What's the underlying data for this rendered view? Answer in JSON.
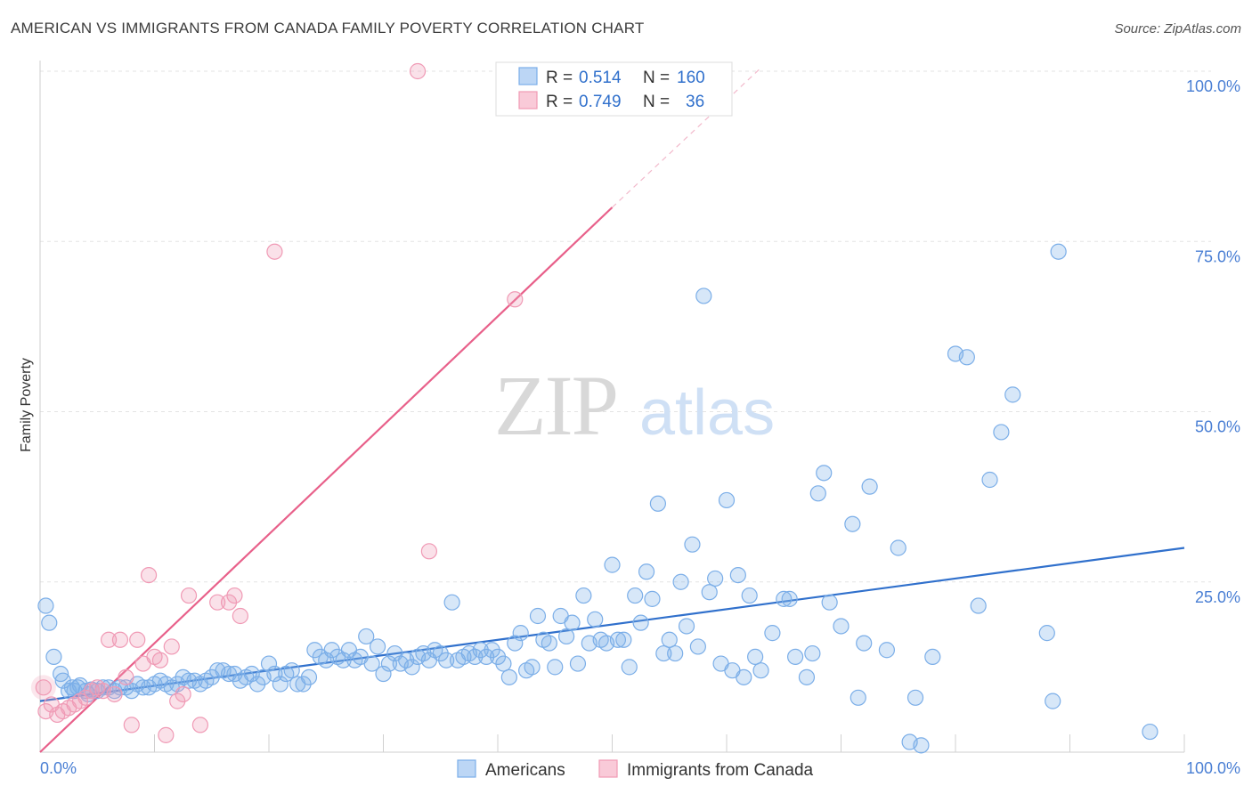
{
  "header": {
    "title": "AMERICAN VS IMMIGRANTS FROM CANADA FAMILY POVERTY CORRELATION CHART",
    "source": "Source: ZipAtlas.com"
  },
  "watermark": {
    "zip": "ZIP",
    "atlas": "atlas"
  },
  "legend": {
    "r_label": "R =",
    "n_label": "N =",
    "rows": [
      {
        "r": "0.514",
        "n": "160",
        "color": "#7baee8"
      },
      {
        "r": "0.749",
        "n": "36",
        "color": "#f09ab5"
      }
    ]
  },
  "bottom_legend": {
    "items": [
      {
        "label": "Americans",
        "color": "#7baee8"
      },
      {
        "label": "Immigrants from Canada",
        "color": "#f09ab5"
      }
    ]
  },
  "chart_data": {
    "type": "scatter",
    "ylabel": "Family Poverty",
    "xlim": [
      0,
      100
    ],
    "ylim": [
      0,
      100
    ],
    "x_ticks": [
      "0.0%",
      "100.0%"
    ],
    "y_ticks": [
      {
        "value": 25,
        "label": "25.0%"
      },
      {
        "value": 50,
        "label": "50.0%"
      },
      {
        "value": 75,
        "label": "75.0%"
      },
      {
        "value": 100,
        "label": "100.0%"
      }
    ],
    "grid": true,
    "series": [
      {
        "name": "Americans",
        "color": "#7baee8",
        "line_color": "#3070cc",
        "trend": {
          "x0": 0,
          "y0": 7.5,
          "x1": 100,
          "y1": 30
        },
        "points": [
          [
            0.5,
            21.5
          ],
          [
            0.8,
            19
          ],
          [
            1.2,
            14
          ],
          [
            1.8,
            11.5
          ],
          [
            2,
            10.5
          ],
          [
            2.5,
            9
          ],
          [
            2.8,
            9.5
          ],
          [
            3,
            9
          ],
          [
            3.3,
            9.5
          ],
          [
            3.5,
            9.8
          ],
          [
            4,
            9
          ],
          [
            4.2,
            8.5
          ],
          [
            4.5,
            9.2
          ],
          [
            5,
            9
          ],
          [
            5.5,
            9.5
          ],
          [
            6,
            9.5
          ],
          [
            6.5,
            9
          ],
          [
            7,
            9.5
          ],
          [
            7.5,
            9.5
          ],
          [
            8,
            9
          ],
          [
            8.5,
            10
          ],
          [
            9,
            9.5
          ],
          [
            9.5,
            9.5
          ],
          [
            10,
            10
          ],
          [
            10.5,
            10.5
          ],
          [
            11,
            10
          ],
          [
            11.5,
            9.5
          ],
          [
            12,
            10
          ],
          [
            12.5,
            11
          ],
          [
            13,
            10.5
          ],
          [
            13.5,
            10.5
          ],
          [
            14,
            10
          ],
          [
            14.5,
            10.5
          ],
          [
            15,
            11
          ],
          [
            15.5,
            12
          ],
          [
            16,
            12
          ],
          [
            16.5,
            11.5
          ],
          [
            17,
            11.5
          ],
          [
            17.5,
            10.5
          ],
          [
            18,
            11
          ],
          [
            18.5,
            11.5
          ],
          [
            19,
            10
          ],
          [
            19.5,
            11
          ],
          [
            20,
            13
          ],
          [
            20.5,
            11.5
          ],
          [
            21,
            10
          ],
          [
            21.5,
            11.5
          ],
          [
            22,
            12
          ],
          [
            22.5,
            10
          ],
          [
            23,
            10
          ],
          [
            23.5,
            11
          ],
          [
            24,
            15
          ],
          [
            24.5,
            14
          ],
          [
            25,
            13.5
          ],
          [
            25.5,
            15
          ],
          [
            26,
            14
          ],
          [
            26.5,
            13.5
          ],
          [
            27,
            15
          ],
          [
            27.5,
            13.5
          ],
          [
            28,
            14
          ],
          [
            28.5,
            17
          ],
          [
            29,
            13
          ],
          [
            29.5,
            15.5
          ],
          [
            30,
            11.5
          ],
          [
            30.5,
            13
          ],
          [
            31,
            14.5
          ],
          [
            31.5,
            13
          ],
          [
            32,
            13.5
          ],
          [
            32.5,
            12.5
          ],
          [
            33,
            14
          ],
          [
            33.5,
            14.5
          ],
          [
            34,
            13.5
          ],
          [
            34.5,
            15
          ],
          [
            35,
            14.5
          ],
          [
            35.5,
            13.5
          ],
          [
            36,
            22
          ],
          [
            36.5,
            13.5
          ],
          [
            37,
            14
          ],
          [
            37.5,
            14.5
          ],
          [
            38,
            14
          ],
          [
            38.5,
            15
          ],
          [
            39,
            14
          ],
          [
            39.5,
            15
          ],
          [
            40,
            14
          ],
          [
            40.5,
            13
          ],
          [
            41,
            11
          ],
          [
            41.5,
            16
          ],
          [
            42,
            17.5
          ],
          [
            42.5,
            12
          ],
          [
            43,
            12.5
          ],
          [
            43.5,
            20
          ],
          [
            44,
            16.5
          ],
          [
            44.5,
            16
          ],
          [
            45,
            12.5
          ],
          [
            45.5,
            20
          ],
          [
            46,
            17
          ],
          [
            46.5,
            19
          ],
          [
            47,
            13
          ],
          [
            47.5,
            23
          ],
          [
            48,
            16
          ],
          [
            48.5,
            19.5
          ],
          [
            49,
            16.5
          ],
          [
            49.5,
            16
          ],
          [
            50,
            27.5
          ],
          [
            50.5,
            16.5
          ],
          [
            51,
            16.5
          ],
          [
            51.5,
            12.5
          ],
          [
            52,
            23
          ],
          [
            52.5,
            19
          ],
          [
            53,
            26.5
          ],
          [
            53.5,
            22.5
          ],
          [
            54,
            36.5
          ],
          [
            54.5,
            14.5
          ],
          [
            55,
            16.5
          ],
          [
            55.5,
            14.5
          ],
          [
            56,
            25
          ],
          [
            56.5,
            18.5
          ],
          [
            57,
            30.5
          ],
          [
            57.5,
            15.5
          ],
          [
            58,
            67
          ],
          [
            58.5,
            23.5
          ],
          [
            59,
            25.5
          ],
          [
            59.5,
            13
          ],
          [
            60,
            37
          ],
          [
            60.5,
            12
          ],
          [
            61,
            26
          ],
          [
            61.5,
            11
          ],
          [
            62,
            23
          ],
          [
            62.5,
            14
          ],
          [
            63,
            12
          ],
          [
            64,
            17.5
          ],
          [
            65,
            22.5
          ],
          [
            65.5,
            22.5
          ],
          [
            66,
            14
          ],
          [
            67,
            11
          ],
          [
            67.5,
            14.5
          ],
          [
            68,
            38
          ],
          [
            68.5,
            41
          ],
          [
            69,
            22
          ],
          [
            70,
            18.5
          ],
          [
            71,
            33.5
          ],
          [
            71.5,
            8
          ],
          [
            72,
            16
          ],
          [
            72.5,
            39
          ],
          [
            74,
            15
          ],
          [
            75,
            30
          ],
          [
            76,
            1.5
          ],
          [
            76.5,
            8
          ],
          [
            77,
            1
          ],
          [
            78,
            14
          ],
          [
            80,
            58.5
          ],
          [
            81,
            58
          ],
          [
            82,
            21.5
          ],
          [
            83,
            40
          ],
          [
            84,
            47
          ],
          [
            85,
            52.5
          ],
          [
            88,
            17.5
          ],
          [
            88.5,
            7.5
          ],
          [
            89,
            73.5
          ],
          [
            97,
            3
          ]
        ]
      },
      {
        "name": "Immigrants from Canada",
        "color": "#f09ab5",
        "line_color": "#e8608a",
        "trend": {
          "x0": 0,
          "y0": 0,
          "x1": 50,
          "y1": 80
        },
        "trend_dash": {
          "x0": 50,
          "y0": 80,
          "x1": 63,
          "y1": 100.5
        },
        "points": [
          [
            0.3,
            9.5
          ],
          [
            0.5,
            6
          ],
          [
            1,
            7
          ],
          [
            1.5,
            5.5
          ],
          [
            2,
            6
          ],
          [
            2.5,
            6.5
          ],
          [
            3,
            7
          ],
          [
            3.5,
            7.5
          ],
          [
            4,
            8
          ],
          [
            4.5,
            9
          ],
          [
            5,
            9.5
          ],
          [
            5.5,
            9
          ],
          [
            6,
            16.5
          ],
          [
            6.5,
            8.5
          ],
          [
            7,
            16.5
          ],
          [
            7.5,
            11
          ],
          [
            8,
            4
          ],
          [
            8.5,
            16.5
          ],
          [
            9,
            13
          ],
          [
            9.5,
            26
          ],
          [
            10,
            14
          ],
          [
            10.5,
            13.5
          ],
          [
            11,
            2.5
          ],
          [
            11.5,
            15.5
          ],
          [
            12,
            7.5
          ],
          [
            12.5,
            8.5
          ],
          [
            13,
            23
          ],
          [
            14,
            4
          ],
          [
            15.5,
            22
          ],
          [
            16.5,
            22
          ],
          [
            17,
            23
          ],
          [
            17.5,
            20
          ],
          [
            20.5,
            73.5
          ],
          [
            33,
            100
          ],
          [
            34,
            29.5
          ],
          [
            41.5,
            66.5
          ]
        ]
      }
    ]
  }
}
